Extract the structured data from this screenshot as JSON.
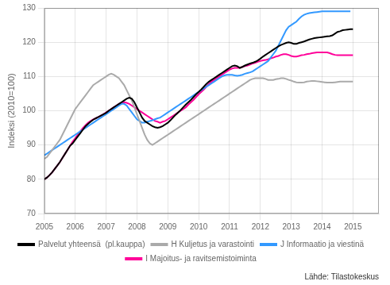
{
  "chart_data": {
    "type": "line",
    "y_label": "Indeksi (2010=100)",
    "annotations": [
      "Lähde: Tilastokeskus"
    ],
    "xlim": [
      2005.0,
      2015.84
    ],
    "xticks": [
      2005,
      2006,
      2007,
      2008,
      2009,
      2010,
      2011,
      2012,
      2013,
      2014,
      2015
    ],
    "ylim": [
      70,
      130
    ],
    "yticks": [
      70,
      80,
      90,
      100,
      110,
      120,
      130
    ],
    "grid": true,
    "legend": "bottom",
    "x": [
      2005.0,
      2005.0833333333333,
      2005.1666666666667,
      2005.25,
      2005.3333333333333,
      2005.4166666666667,
      2005.5,
      2005.5833333333333,
      2005.6666666666667,
      2005.75,
      2005.8333333333333,
      2005.9166666666667,
      2006.0,
      2006.0833333333333,
      2006.1666666666667,
      2006.25,
      2006.3333333333333,
      2006.4166666666667,
      2006.5,
      2006.5833333333333,
      2006.6666666666667,
      2006.75,
      2006.8333333333333,
      2006.9166666666667,
      2007.0,
      2007.0833333333333,
      2007.1666666666667,
      2007.25,
      2007.3333333333333,
      2007.4166666666667,
      2007.5,
      2007.5833333333333,
      2007.6666666666667,
      2007.75,
      2007.8333333333333,
      2007.9166666666667,
      2008.0,
      2008.0833333333333,
      2008.1666666666667,
      2008.25,
      2008.3333333333333,
      2008.4166666666667,
      2008.5,
      2008.5833333333333,
      2008.6666666666667,
      2008.75,
      2008.8333333333333,
      2008.9166666666667,
      2009.0,
      2009.0833333333333,
      2009.1666666666667,
      2009.25,
      2009.3333333333333,
      2009.4166666666667,
      2009.5,
      2009.5833333333333,
      2009.6666666666667,
      2009.75,
      2009.8333333333333,
      2009.9166666666667,
      2010.0,
      2010.0833333333333,
      2010.1666666666667,
      2010.25,
      2010.3333333333333,
      2010.4166666666667,
      2010.5,
      2010.5833333333333,
      2010.6666666666667,
      2010.75,
      2010.8333333333333,
      2010.9166666666667,
      2011.0,
      2011.0833333333333,
      2011.1666666666667,
      2011.25,
      2011.3333333333333,
      2011.4166666666667,
      2011.5,
      2011.5833333333333,
      2011.6666666666667,
      2011.75,
      2011.8333333333333,
      2011.9166666666667,
      2012.0,
      2012.0833333333333,
      2012.1666666666667,
      2012.25,
      2012.3333333333333,
      2012.4166666666667,
      2012.5,
      2012.5833333333333,
      2012.6666666666667,
      2012.75,
      2012.8333333333333,
      2012.9166666666667,
      2013.0,
      2013.0833333333333,
      2013.1666666666667,
      2013.25,
      2013.3333333333333,
      2013.4166666666667,
      2013.5,
      2013.5833333333333,
      2013.6666666666667,
      2013.75,
      2013.8333333333333,
      2013.9166666666667,
      2014.0,
      2014.0833333333333,
      2014.1666666666667,
      2014.25,
      2014.3333333333333,
      2014.4166666666667,
      2014.5,
      2014.5833333333333,
      2014.6666666666667,
      2014.75,
      2014.8333333333333,
      2014.9166666666667,
      2015.0
    ],
    "series": [
      {
        "name": "Palvelut yhteensä  (pl.kauppa)",
        "color": "#000000",
        "values": [
          80.0,
          80.5,
          81.2,
          82.0,
          83.0,
          84.0,
          85.0,
          86.2,
          87.4,
          88.6,
          89.8,
          90.5,
          91.5,
          92.5,
          93.5,
          94.5,
          95.5,
          96.2,
          96.8,
          97.4,
          97.8,
          98.2,
          98.6,
          99.0,
          99.4,
          100.0,
          100.5,
          101.0,
          101.5,
          102.0,
          102.5,
          103.0,
          103.5,
          103.8,
          103.5,
          102.5,
          101.0,
          99.5,
          98.0,
          97.0,
          96.5,
          96.0,
          95.5,
          95.2,
          95.0,
          95.2,
          95.5,
          96.0,
          96.5,
          97.2,
          98.0,
          98.8,
          99.5,
          100.2,
          101.0,
          101.8,
          102.5,
          103.2,
          104.0,
          104.8,
          105.5,
          106.2,
          107.0,
          107.8,
          108.5,
          109.0,
          109.5,
          110.0,
          110.5,
          111.0,
          111.5,
          112.0,
          112.5,
          113.0,
          113.2,
          113.0,
          112.5,
          112.8,
          113.2,
          113.5,
          113.8,
          114.0,
          114.3,
          114.7,
          115.2,
          115.8,
          116.3,
          116.8,
          117.3,
          117.8,
          118.3,
          118.8,
          119.2,
          119.5,
          119.8,
          120.0,
          119.8,
          119.5,
          119.5,
          119.8,
          120.0,
          120.2,
          120.5,
          120.8,
          121.0,
          121.2,
          121.3,
          121.4,
          121.5,
          121.6,
          121.7,
          121.8,
          122.0,
          122.5,
          123.0,
          123.2,
          123.5,
          123.6,
          123.7,
          123.8,
          123.8
        ]
      },
      {
        "name": "H Kuljetus ja varastointi",
        "color": "#aaaaaa",
        "values": [
          86.0,
          86.5,
          87.5,
          88.5,
          89.5,
          90.5,
          91.5,
          93.0,
          94.5,
          96.0,
          97.5,
          99.0,
          100.5,
          101.5,
          102.5,
          103.5,
          104.5,
          105.5,
          106.5,
          107.5,
          108.0,
          108.5,
          109.0,
          109.5,
          110.0,
          110.5,
          110.8,
          110.5,
          110.0,
          109.5,
          108.5,
          107.5,
          106.0,
          104.5,
          103.0,
          101.0,
          99.0,
          97.0,
          95.0,
          93.0,
          91.5,
          90.5,
          90.0,
          90.5,
          91.0,
          91.5,
          92.0,
          92.5,
          93.0,
          93.5,
          94.0,
          94.5,
          95.0,
          95.5,
          96.0,
          96.5,
          97.0,
          97.5,
          98.0,
          98.5,
          99.0,
          99.5,
          100.0,
          100.5,
          101.0,
          101.5,
          102.0,
          102.5,
          103.0,
          103.5,
          104.0,
          104.5,
          105.0,
          105.5,
          106.0,
          106.5,
          107.0,
          107.5,
          108.0,
          108.5,
          109.0,
          109.3,
          109.5,
          109.5,
          109.5,
          109.5,
          109.3,
          109.0,
          109.0,
          109.0,
          109.2,
          109.3,
          109.5,
          109.5,
          109.3,
          109.0,
          108.8,
          108.5,
          108.3,
          108.2,
          108.2,
          108.3,
          108.5,
          108.6,
          108.7,
          108.7,
          108.6,
          108.5,
          108.4,
          108.3,
          108.2,
          108.2,
          108.2,
          108.3,
          108.4,
          108.5,
          108.5,
          108.5,
          108.5,
          108.5,
          108.5
        ]
      },
      {
        "name": "J Informaatio ja viestinä",
        "color": "#3399ff",
        "values": [
          87.0,
          87.5,
          88.0,
          88.5,
          89.0,
          89.5,
          90.0,
          90.5,
          91.0,
          91.5,
          92.0,
          92.5,
          93.0,
          93.5,
          94.0,
          94.5,
          95.0,
          95.5,
          96.0,
          96.5,
          97.0,
          97.5,
          98.0,
          98.5,
          99.0,
          99.5,
          100.0,
          100.5,
          101.0,
          101.5,
          102.0,
          102.0,
          101.5,
          100.5,
          99.5,
          98.5,
          97.5,
          97.0,
          96.5,
          96.5,
          96.8,
          97.0,
          97.2,
          97.5,
          97.8,
          98.0,
          98.5,
          99.0,
          99.5,
          100.0,
          100.5,
          101.0,
          101.5,
          102.0,
          102.5,
          103.0,
          103.5,
          104.0,
          104.5,
          105.0,
          105.5,
          106.0,
          106.5,
          107.0,
          107.5,
          108.0,
          108.5,
          109.0,
          109.5,
          110.0,
          110.3,
          110.5,
          110.5,
          110.5,
          110.3,
          110.2,
          110.3,
          110.5,
          110.8,
          111.0,
          111.2,
          111.5,
          112.0,
          112.5,
          113.0,
          113.5,
          114.0,
          114.5,
          115.5,
          116.5,
          117.5,
          119.0,
          120.5,
          122.0,
          123.5,
          124.5,
          125.0,
          125.5,
          126.0,
          126.8,
          127.5,
          128.0,
          128.3,
          128.5,
          128.6,
          128.7,
          128.8,
          128.9,
          129.0,
          129.0,
          129.0,
          129.0,
          129.0,
          129.0,
          129.0,
          129.0,
          129.0,
          129.0,
          129.0,
          129.0,
          null
        ]
      },
      {
        "name": "I Majoitus- ja ravitsemistoiminta",
        "color": "#ff0099",
        "values": [
          80.0,
          80.5,
          81.2,
          82.0,
          83.0,
          84.0,
          85.0,
          86.2,
          87.4,
          88.6,
          89.8,
          91.0,
          92.0,
          93.0,
          94.0,
          95.0,
          95.8,
          96.5,
          97.0,
          97.5,
          97.8,
          98.2,
          98.6,
          99.0,
          99.5,
          100.0,
          100.5,
          101.0,
          101.5,
          102.0,
          102.3,
          102.5,
          102.3,
          102.0,
          101.5,
          101.0,
          100.5,
          100.0,
          99.5,
          99.0,
          98.5,
          98.0,
          97.5,
          97.0,
          96.8,
          96.5,
          96.8,
          97.0,
          97.5,
          98.0,
          98.5,
          99.0,
          99.5,
          100.0,
          100.5,
          101.0,
          101.8,
          102.5,
          103.2,
          104.0,
          104.8,
          105.5,
          106.2,
          107.0,
          107.8,
          108.5,
          109.0,
          109.5,
          110.0,
          110.5,
          111.0,
          111.5,
          112.0,
          112.3,
          112.5,
          112.5,
          112.5,
          112.8,
          113.0,
          113.2,
          113.5,
          113.8,
          114.0,
          114.3,
          114.5,
          114.7,
          114.8,
          115.0,
          115.3,
          115.5,
          115.8,
          116.0,
          116.3,
          116.5,
          116.5,
          116.3,
          116.0,
          115.8,
          115.8,
          116.0,
          116.2,
          116.3,
          116.5,
          116.6,
          116.8,
          116.9,
          117.0,
          117.0,
          117.0,
          117.0,
          117.0,
          116.8,
          116.5,
          116.3,
          116.2,
          116.2,
          116.2,
          116.2,
          116.2,
          116.2,
          116.2
        ]
      }
    ]
  }
}
